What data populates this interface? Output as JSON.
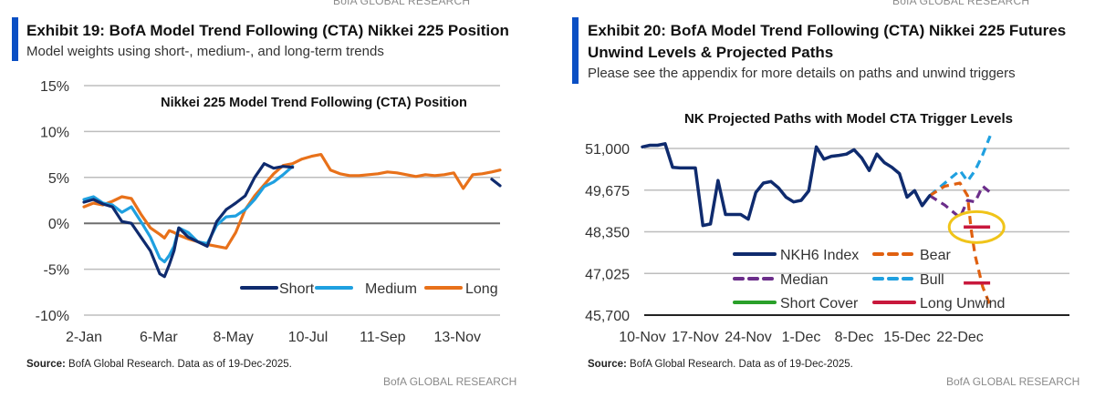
{
  "exhibit19": {
    "top_brand": "BofA GLOBAL RESEARCH",
    "title": "Exhibit 19: BofA Model Trend Following (CTA) Nikkei 225 Position",
    "subtitle": "Model weights using short-, medium-, and long-term trends",
    "source_label": "Source:",
    "source_text": " BofA Global Research.  Data as of 19-Dec-2025.",
    "bottom_brand": "BofA GLOBAL RESEARCH",
    "accent_color": "#0a4fc4"
  },
  "exhibit20": {
    "top_brand": "BofA GLOBAL RESEARCH",
    "title": "Exhibit 20: BofA Model Trend Following (CTA) Nikkei 225 Futures Unwind Levels & Projected Paths",
    "subtitle": "Please see the appendix for more details on paths and unwind triggers",
    "source_label": "Source:",
    "source_text": " BofA Global Research.  Data as of 19-Dec-2025.",
    "bottom_brand": "BofA GLOBAL RESEARCH",
    "accent_color": "#0a4fc4"
  },
  "chart_data": [
    {
      "type": "line",
      "title": "Nikkei 225 Model Trend Following (CTA) Position",
      "xlabel": "",
      "ylabel": "",
      "ylim": [
        -10,
        15
      ],
      "yticks": [
        15,
        10,
        5,
        0,
        -5,
        -10
      ],
      "ytick_labels": [
        "15%",
        "10%",
        "5%",
        "0%",
        "-5%",
        "-10%"
      ],
      "x_domain": [
        0,
        351
      ],
      "xticks": [
        0,
        63,
        126,
        189,
        252,
        315
      ],
      "xtick_labels": [
        "2-Jan",
        "6-Mar",
        "8-May",
        "10-Jul",
        "11-Sep",
        "13-Nov"
      ],
      "grid": true,
      "legend": "bottom-right",
      "x": [
        0,
        8,
        16,
        24,
        32,
        40,
        48,
        56,
        64,
        68,
        72,
        76,
        80,
        88,
        96,
        104,
        112,
        120,
        128,
        136,
        144,
        152,
        160,
        168,
        176,
        184,
        192,
        200,
        208,
        216,
        224,
        232,
        240,
        248,
        256,
        264,
        272,
        280,
        288,
        296,
        304,
        312,
        320,
        328,
        336,
        344,
        351
      ],
      "series": [
        {
          "name": "Short",
          "color": "#0f2b6e",
          "values": [
            2.3,
            2.6,
            2.1,
            1.8,
            0.2,
            0.0,
            -1.5,
            -3.0,
            -5.5,
            -5.8,
            -4.5,
            -3.0,
            -0.5,
            -1.5,
            -2.0,
            -2.5,
            0.2,
            1.5,
            2.2,
            3.0,
            5.0,
            6.5,
            6.0,
            6.2,
            6.1,
            null,
            null,
            null,
            null,
            null,
            null,
            null,
            null,
            null,
            null,
            null,
            null,
            null,
            null,
            null,
            null,
            null,
            null,
            null,
            null,
            4.8,
            4.1
          ]
        },
        {
          "name": "Medium",
          "color": "#1fa0e0",
          "values": [
            2.6,
            2.9,
            2.2,
            2.0,
            1.2,
            1.8,
            0.2,
            -1.5,
            -3.8,
            -4.2,
            -3.5,
            -2.5,
            -0.5,
            -1.0,
            -2.0,
            -2.2,
            -0.2,
            0.7,
            0.8,
            1.5,
            2.6,
            4.0,
            4.5,
            5.3,
            6.2,
            null,
            null,
            null,
            null,
            null,
            null,
            null,
            null,
            null,
            null,
            null,
            null,
            null,
            null,
            null,
            null,
            null,
            null,
            null,
            null,
            null,
            null
          ]
        },
        {
          "name": "Long",
          "color": "#e8711a",
          "values": [
            1.8,
            2.2,
            2.0,
            2.4,
            2.9,
            2.7,
            1.0,
            -0.5,
            -1.2,
            -1.6,
            -0.8,
            -1.0,
            -1.3,
            -1.7,
            -2.0,
            -2.3,
            -2.5,
            -2.7,
            -1.0,
            1.5,
            3.0,
            4.2,
            5.4,
            6.3,
            6.5,
            7.0,
            7.3,
            7.5,
            5.8,
            5.4,
            5.2,
            5.2,
            5.3,
            5.4,
            5.6,
            5.5,
            5.3,
            5.1,
            5.3,
            5.2,
            5.3,
            5.5,
            3.8,
            5.3,
            5.4,
            5.6,
            5.8
          ]
        }
      ]
    },
    {
      "type": "line",
      "title": "NK Projected Paths with Model CTA Trigger Levels",
      "xlabel": "",
      "ylabel": "",
      "ylim": [
        45700,
        51000
      ],
      "yticks": [
        51000,
        49675,
        48350,
        47025,
        45700
      ],
      "ytick_labels": [
        "51,000",
        "49,675",
        "48,350",
        "47,025",
        "45,700"
      ],
      "x_domain": [
        0,
        48
      ],
      "xticks": [
        0,
        7,
        14,
        21,
        28,
        35,
        42
      ],
      "xtick_labels": [
        "10-Nov",
        "17-Nov",
        "24-Nov",
        "1-Dec",
        "8-Dec",
        "15-Dec",
        "22-Dec"
      ],
      "grid": true,
      "legend": "bottom-center",
      "series": [
        {
          "name": "NKH6 Index",
          "color": "#0f2b6e",
          "style": "solid",
          "x": [
            0,
            1,
            2,
            3,
            4,
            5,
            6,
            7,
            8,
            9,
            10,
            11,
            12,
            13,
            14,
            15,
            16,
            17,
            18,
            19,
            20,
            21,
            22,
            23,
            24,
            25,
            26,
            27,
            28,
            29,
            30,
            31,
            32,
            33,
            34,
            35,
            36,
            37,
            38
          ],
          "values": [
            51050,
            51100,
            51100,
            51150,
            50400,
            50380,
            50380,
            50380,
            48550,
            48600,
            49980,
            48900,
            48900,
            48900,
            48750,
            49600,
            49900,
            49950,
            49750,
            49450,
            49300,
            49350,
            49650,
            51050,
            50660,
            50750,
            50780,
            50820,
            50960,
            50700,
            50300,
            50820,
            50550,
            50400,
            50200,
            49450,
            49660,
            49180,
            49500
          ]
        },
        {
          "name": "Median",
          "color": "#6b2d8a",
          "style": "dashed",
          "x": [
            38,
            40,
            42,
            43,
            44,
            45,
            46
          ],
          "values": [
            49500,
            49200,
            48800,
            49350,
            49300,
            49800,
            49600
          ]
        },
        {
          "name": "Bear",
          "color": "#e06010",
          "style": "dashed",
          "x": [
            38,
            40,
            42,
            43,
            43.5,
            44,
            45,
            46
          ],
          "values": [
            49500,
            49800,
            49900,
            49500,
            48400,
            47600,
            46600,
            46000
          ]
        },
        {
          "name": "Bull",
          "color": "#1fa0e0",
          "style": "dashed",
          "x": [
            38,
            40,
            42,
            43,
            44,
            45,
            46
          ],
          "values": [
            49500,
            49900,
            50300,
            49960,
            50300,
            50800,
            51400
          ]
        },
        {
          "name": "Short Cover",
          "color": "#2aa02a",
          "style": "solid",
          "x": [],
          "values": []
        },
        {
          "name": "Long Unwind",
          "color": "#c8183c",
          "style": "solid",
          "segments": [
            {
              "x": [
                42.5,
                46
              ],
              "values": [
                48500,
                48500
              ]
            },
            {
              "x": [
                42.5,
                46
              ],
              "values": [
                46720,
                46720
              ]
            }
          ]
        }
      ],
      "annotations": [
        {
          "type": "ellipse",
          "color": "#f0c419",
          "around": "Long Unwind level 48,500 near 22-Dec"
        }
      ]
    }
  ]
}
